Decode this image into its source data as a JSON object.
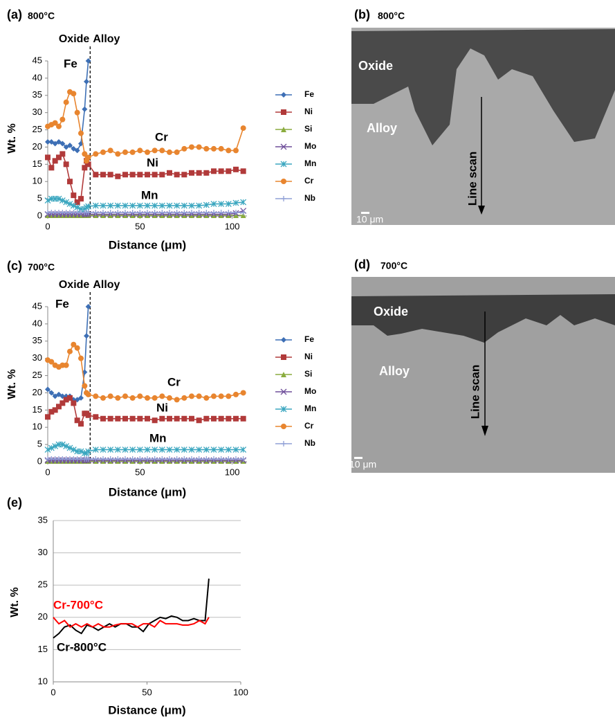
{
  "chart_data": [
    {
      "type": "line",
      "panel": "(a)",
      "title": "800°C",
      "x_label": "Distance (μm)",
      "y_label": "Wt. %",
      "annotations": [
        "Oxide",
        "Alloy"
      ],
      "oxide_alloy_boundary": 23,
      "x": [
        0,
        2,
        4,
        6,
        8,
        10,
        12,
        14,
        16,
        18,
        20,
        21,
        22,
        26,
        30,
        34,
        38,
        42,
        46,
        50,
        54,
        58,
        62,
        66,
        70,
        74,
        78,
        82,
        86,
        90,
        94,
        98,
        102,
        106
      ],
      "xlim": [
        0,
        108
      ],
      "ylim": [
        0,
        45
      ],
      "xticks": [
        0,
        50,
        100
      ],
      "yticks": [
        0,
        5,
        10,
        15,
        20,
        25,
        30,
        35,
        40,
        45
      ],
      "grid": false,
      "legend": "right",
      "series": [
        {
          "name": "Fe",
          "color": "#3d6fb5",
          "marker": "diamond",
          "values": [
            21.5,
            21.5,
            21,
            21.5,
            21,
            20,
            20.5,
            19.5,
            19,
            21,
            31,
            39,
            45,
            null,
            null,
            null,
            null,
            null,
            null,
            null,
            null,
            null,
            null,
            null,
            null,
            null,
            null,
            null,
            null,
            null,
            null,
            null,
            null,
            null
          ]
        },
        {
          "name": "Ni",
          "color": "#b13a3a",
          "marker": "square",
          "values": [
            17,
            14,
            16,
            17,
            18,
            15,
            10,
            6,
            4,
            5,
            14,
            16,
            15,
            12,
            12,
            12,
            11.5,
            12,
            12,
            12,
            12,
            12,
            12,
            12.5,
            12,
            12,
            12.5,
            12.5,
            12.5,
            13,
            13,
            13,
            13.5,
            13
          ]
        },
        {
          "name": "Si",
          "color": "#8aac3e",
          "marker": "triangle",
          "values": [
            0.2,
            0.2,
            0.2,
            0.2,
            0.2,
            0.2,
            0.2,
            0.2,
            0.2,
            0.2,
            0.2,
            0.2,
            0.2,
            0.2,
            0.2,
            0.2,
            0.2,
            0.2,
            0.2,
            0.2,
            0.2,
            0.2,
            0.2,
            0.2,
            0.2,
            0.2,
            0.2,
            0.2,
            0.2,
            0.2,
            0.2,
            0.2,
            0.2,
            0.2
          ]
        },
        {
          "name": "Mo",
          "color": "#6f4f9a",
          "marker": "x",
          "values": [
            0.5,
            0.5,
            0.5,
            0.5,
            0.5,
            0.5,
            0.5,
            0.5,
            0.5,
            0.5,
            0.5,
            0.5,
            0.5,
            0.5,
            0.5,
            0.5,
            0.5,
            0.5,
            0.5,
            0.5,
            0.5,
            0.5,
            0.5,
            0.5,
            0.5,
            0.5,
            0.5,
            0.5,
            0.5,
            0.5,
            0.5,
            0.5,
            0.8,
            1.5
          ]
        },
        {
          "name": "Mn",
          "color": "#3aa6bf",
          "marker": "star",
          "values": [
            4.5,
            5,
            5,
            5,
            4.5,
            4,
            3.5,
            3,
            2.5,
            2,
            2,
            2.5,
            2.8,
            3,
            3,
            3,
            3,
            3,
            3,
            3,
            3,
            3,
            3,
            3,
            3,
            3,
            3,
            3,
            3.2,
            3.5,
            3.5,
            3.5,
            3.8,
            4
          ]
        },
        {
          "name": "Cr",
          "color": "#e8852f",
          "marker": "circle",
          "values": [
            26,
            26.5,
            27,
            26,
            28,
            33,
            36,
            35.5,
            30,
            24,
            18,
            16,
            17,
            18,
            18.5,
            19,
            18,
            18.5,
            18.5,
            19,
            18.5,
            19,
            19,
            18.5,
            18.5,
            19.5,
            20,
            20,
            19.5,
            19.5,
            19.5,
            19,
            19,
            25.5
          ]
        },
        {
          "name": "Nb",
          "color": "#8f9fd6",
          "marker": "plus",
          "values": [
            1,
            1,
            1,
            1,
            1,
            1,
            1,
            1,
            1,
            1,
            1,
            1,
            1,
            1,
            1,
            1,
            1,
            1,
            1,
            1,
            1,
            1,
            1,
            1,
            1,
            1,
            1,
            1,
            1,
            1,
            1,
            1,
            1,
            1
          ]
        }
      ]
    },
    {
      "type": "line",
      "panel": "(c)",
      "title": "700°C",
      "x_label": "Distance (μm)",
      "y_label": "Wt. %",
      "annotations": [
        "Oxide",
        "Alloy"
      ],
      "oxide_alloy_boundary": 23,
      "x": [
        0,
        2,
        4,
        6,
        8,
        10,
        12,
        14,
        16,
        18,
        20,
        21,
        22,
        26,
        30,
        34,
        38,
        42,
        46,
        50,
        54,
        58,
        62,
        66,
        70,
        74,
        78,
        82,
        86,
        90,
        94,
        98,
        102,
        106
      ],
      "xlim": [
        0,
        108
      ],
      "ylim": [
        0,
        45
      ],
      "xticks": [
        0,
        50,
        100
      ],
      "yticks": [
        0,
        5,
        10,
        15,
        20,
        25,
        30,
        35,
        40,
        45
      ],
      "grid": false,
      "legend": "right",
      "series": [
        {
          "name": "Fe",
          "color": "#3d6fb5",
          "marker": "diamond",
          "values": [
            21,
            20,
            19,
            19.5,
            19,
            19,
            19,
            18,
            18,
            18.5,
            26,
            36.5,
            45,
            null,
            null,
            null,
            null,
            null,
            null,
            null,
            null,
            null,
            null,
            null,
            null,
            null,
            null,
            null,
            null,
            null,
            null,
            null,
            null,
            null
          ]
        },
        {
          "name": "Ni",
          "color": "#b13a3a",
          "marker": "square",
          "values": [
            13,
            14.5,
            15,
            16,
            17,
            18,
            18.5,
            17,
            12,
            11,
            14,
            14,
            13.5,
            13,
            12.5,
            12.5,
            12.5,
            12.5,
            12.5,
            12.5,
            12.5,
            12,
            12.5,
            12.5,
            12.5,
            12.5,
            12.5,
            12,
            12.5,
            12.5,
            12.5,
            12.5,
            12.5,
            12.5
          ]
        },
        {
          "name": "Si",
          "color": "#8aac3e",
          "marker": "triangle",
          "values": [
            0.2,
            0.2,
            0.2,
            0.2,
            0.2,
            0.2,
            0.2,
            0.2,
            0.2,
            0.2,
            0.2,
            0.2,
            0.2,
            0.2,
            0.2,
            0.2,
            0.2,
            0.2,
            0.2,
            0.2,
            0.2,
            0.2,
            0.2,
            0.2,
            0.2,
            0.2,
            0.2,
            0.2,
            0.2,
            0.2,
            0.2,
            0.2,
            0.2,
            0.2
          ]
        },
        {
          "name": "Mo",
          "color": "#6f4f9a",
          "marker": "x",
          "values": [
            0.4,
            0.4,
            0.4,
            0.4,
            0.4,
            0.4,
            0.4,
            0.4,
            0.4,
            0.4,
            0.4,
            0.4,
            0.4,
            0.4,
            0.4,
            0.4,
            0.4,
            0.4,
            0.4,
            0.4,
            0.4,
            0.4,
            0.4,
            0.4,
            0.4,
            0.4,
            0.4,
            0.4,
            0.4,
            0.4,
            0.4,
            0.4,
            0.4,
            0.4
          ]
        },
        {
          "name": "Mn",
          "color": "#3aa6bf",
          "marker": "star",
          "values": [
            3.5,
            4,
            4.5,
            5,
            5,
            4.5,
            4,
            3.5,
            3,
            3,
            2.5,
            2.5,
            3,
            3.5,
            3.5,
            3.5,
            3.5,
            3.5,
            3.5,
            3.5,
            3.5,
            3.5,
            3.5,
            3.5,
            3.5,
            3.5,
            3.5,
            3.5,
            3.5,
            3.5,
            3.5,
            3.5,
            3.5,
            3.5
          ]
        },
        {
          "name": "Cr",
          "color": "#e8852f",
          "marker": "circle",
          "values": [
            29.5,
            29,
            28,
            27.5,
            28,
            28,
            32,
            34,
            33,
            30,
            22,
            20,
            19.5,
            19,
            18.5,
            19,
            18.5,
            19,
            18.5,
            19,
            18.5,
            18.5,
            19,
            18.5,
            18,
            18.5,
            19,
            19,
            18.5,
            19,
            19,
            19,
            19.5,
            20
          ]
        },
        {
          "name": "Nb",
          "color": "#8f9fd6",
          "marker": "plus",
          "values": [
            0.8,
            0.8,
            0.8,
            0.8,
            0.8,
            0.8,
            0.8,
            0.8,
            0.8,
            0.8,
            0.8,
            0.8,
            0.8,
            0.8,
            0.8,
            0.8,
            0.8,
            0.8,
            0.8,
            0.8,
            0.8,
            0.8,
            0.8,
            0.8,
            0.8,
            0.8,
            0.8,
            0.8,
            0.8,
            0.8,
            0.8,
            0.8,
            0.8,
            0.8
          ]
        }
      ]
    },
    {
      "type": "line",
      "panel": "(e)",
      "x_label": "Distance (μm)",
      "y_label": "Wt. %",
      "x": [
        0,
        3,
        6,
        9,
        12,
        15,
        18,
        21,
        24,
        27,
        30,
        33,
        36,
        39,
        42,
        45,
        48,
        51,
        54,
        57,
        60,
        63,
        66,
        69,
        72,
        75,
        78,
        81,
        83
      ],
      "xlim": [
        0,
        100
      ],
      "ylim": [
        10,
        35
      ],
      "xticks": [
        0,
        50,
        100
      ],
      "yticks": [
        10,
        15,
        20,
        25,
        30,
        35
      ],
      "grid": true,
      "series": [
        {
          "name": "Cr-800°C",
          "color": "#000000",
          "values": [
            16.8,
            17.5,
            18.5,
            18.8,
            18,
            17.5,
            18.8,
            18.5,
            18,
            18.5,
            19,
            18.5,
            19,
            19,
            18.5,
            18.5,
            17.8,
            19,
            19.5,
            20,
            19.8,
            20.2,
            20,
            19.5,
            19.5,
            19.8,
            19.5,
            19.5,
            26
          ]
        },
        {
          "name": "Cr-700°C",
          "color": "#ff0000",
          "values": [
            20,
            19,
            19.5,
            18.5,
            19,
            18.5,
            19,
            18.5,
            19,
            18.5,
            18.5,
            18.8,
            19,
            19,
            19,
            18.5,
            19,
            19,
            18.5,
            19.5,
            19,
            19,
            19,
            18.8,
            18.8,
            19,
            19.5,
            19,
            20
          ]
        }
      ]
    }
  ],
  "micrographs": [
    {
      "panel": "(b)",
      "title": "800°C",
      "labels": [
        "Oxide",
        "Alloy",
        "Line scan"
      ],
      "scale_bar": "10 μm"
    },
    {
      "panel": "(d)",
      "title": "700°C",
      "labels": [
        "Oxide",
        "Alloy",
        "Line scan"
      ],
      "scale_bar": "10 μm"
    }
  ]
}
